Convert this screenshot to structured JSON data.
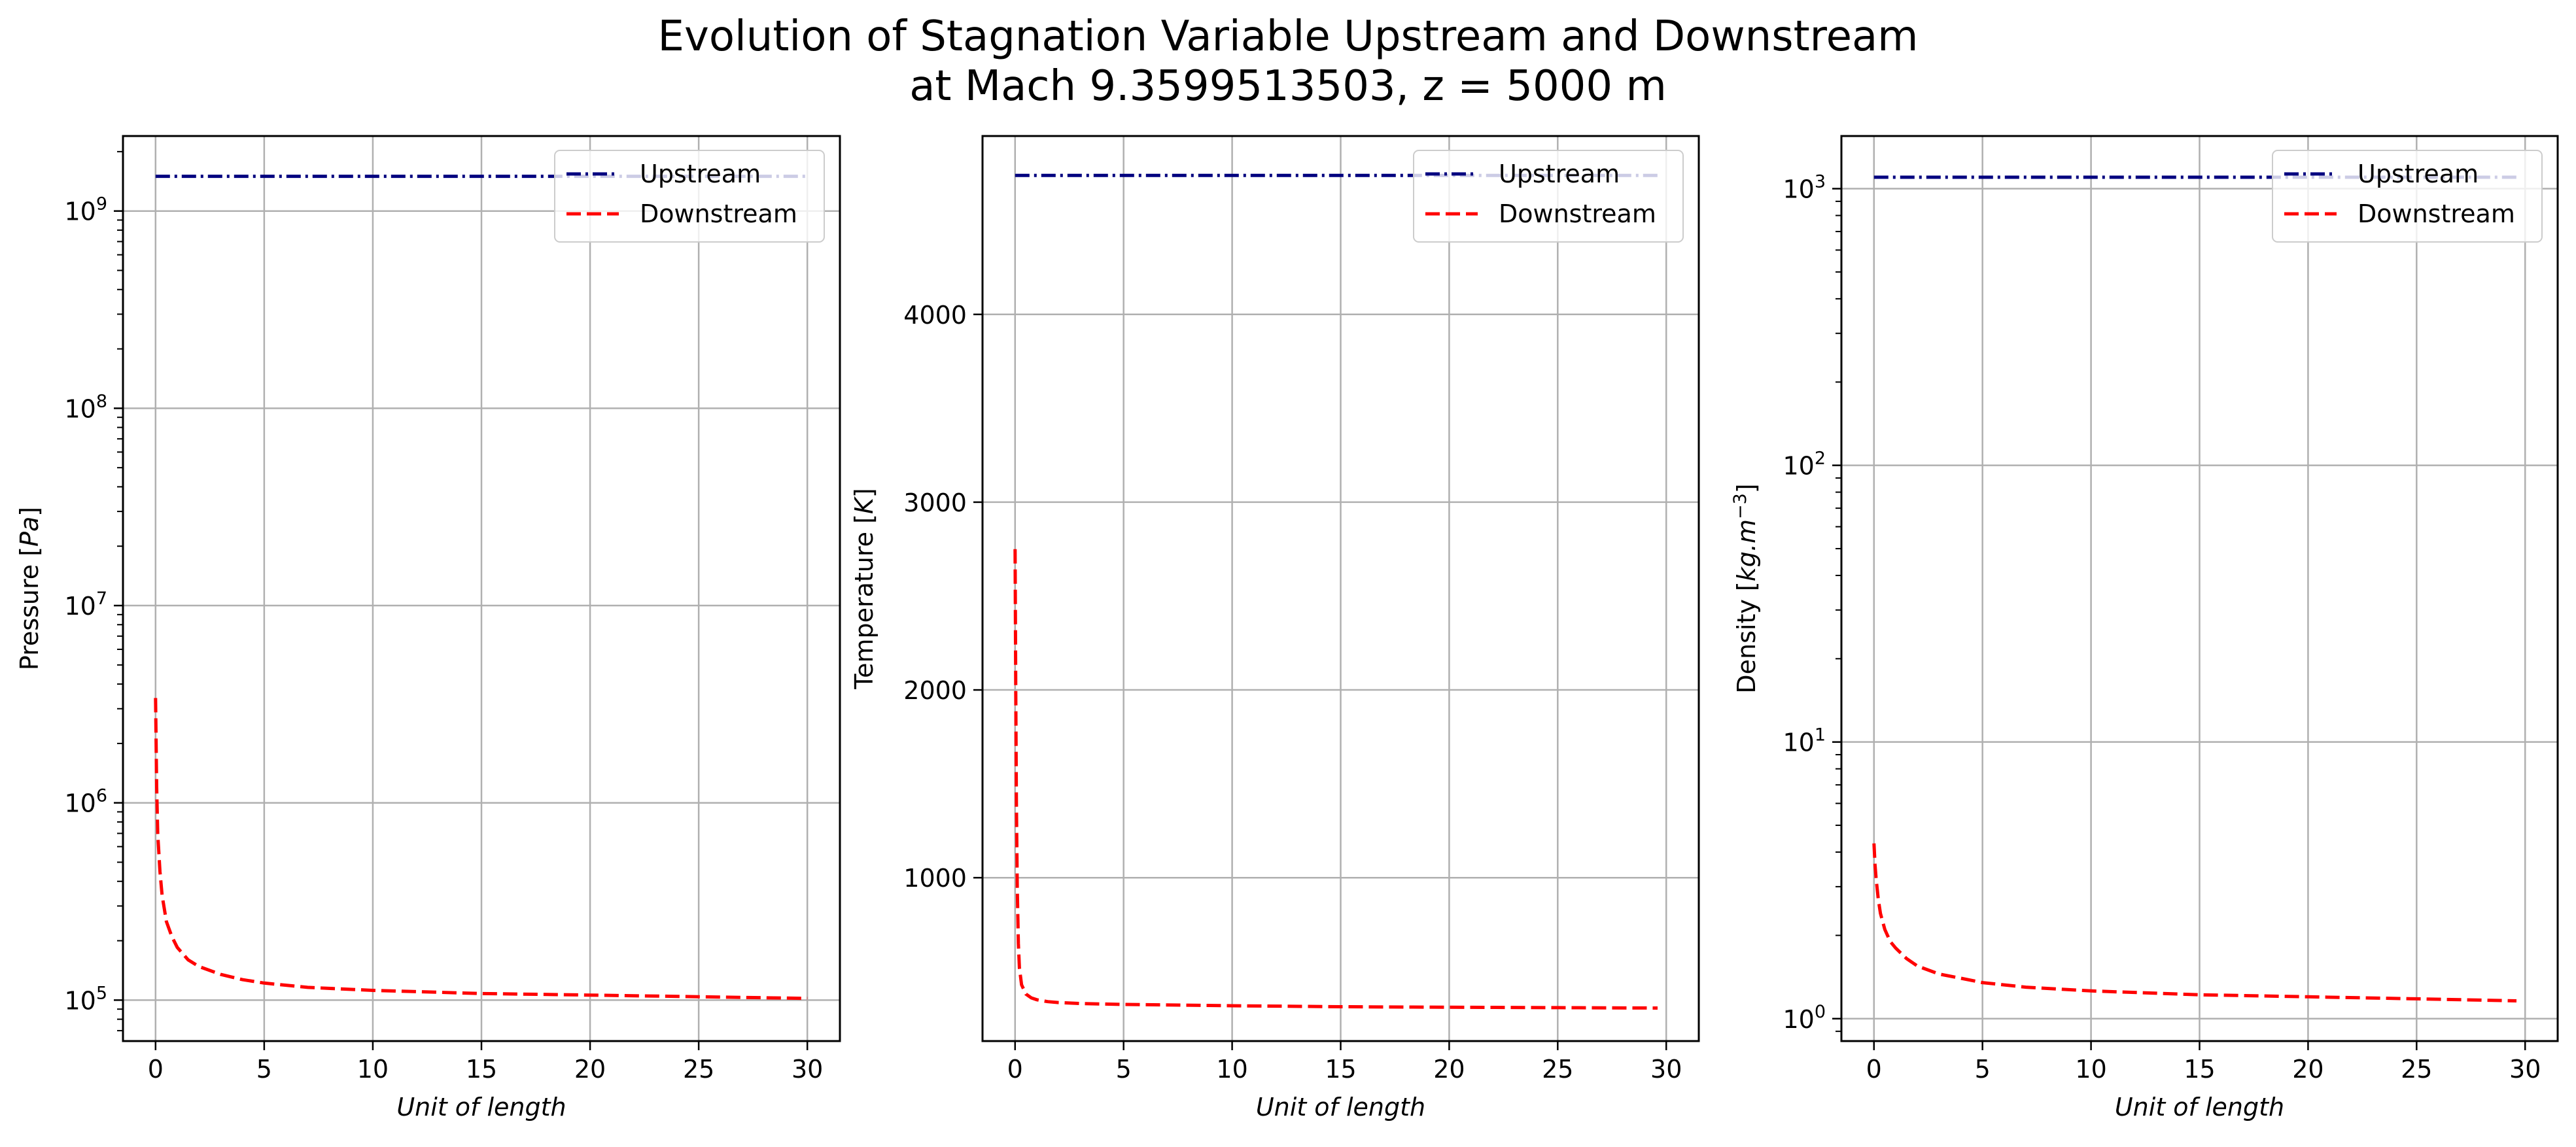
{
  "title_line1": "Evolution of Stagnation Variable Upstream and Downstream",
  "title_line2": "at Mach 9.3599513503, z = 5000 m",
  "colors": {
    "upstream": "#00007f",
    "downstream": "#ff0000",
    "grid": "#b0b0b0"
  },
  "chart_data": [
    {
      "type": "line",
      "xlabel": "Unit of length",
      "ylabel": "Pressure [Pa]",
      "yscale": "log",
      "xlim": [
        -1.5,
        31.5
      ],
      "ylim": [
        62000,
        2400000000
      ],
      "xticks": [
        0,
        5,
        10,
        15,
        20,
        25,
        30
      ],
      "yticks": [
        {
          "v": 100000,
          "base": "10",
          "exp": "5"
        },
        {
          "v": 1000000,
          "base": "10",
          "exp": "6"
        },
        {
          "v": 10000000,
          "base": "10",
          "exp": "7"
        },
        {
          "v": 100000000,
          "base": "10",
          "exp": "8"
        },
        {
          "v": 1000000000,
          "base": "10",
          "exp": "9"
        }
      ],
      "grid": true,
      "legend": "upper right",
      "series": [
        {
          "name": "Upstream",
          "style": "dashdot",
          "x": [
            0,
            30
          ],
          "y": [
            1500000000,
            1500000000
          ]
        },
        {
          "name": "Downstream",
          "style": "dashed",
          "x": [
            0,
            0.05,
            0.1,
            0.2,
            0.3,
            0.5,
            0.75,
            1,
            1.5,
            2,
            3,
            4,
            5,
            7,
            10,
            15,
            20,
            25,
            30
          ],
          "y": [
            3400000,
            1200000,
            700000,
            450000,
            340000,
            250000,
            210000,
            185000,
            160000,
            148000,
            135000,
            127000,
            122000,
            116000,
            112000,
            108000,
            106000,
            104000,
            102000
          ]
        }
      ]
    },
    {
      "type": "line",
      "xlabel": "Unit of length",
      "ylabel": "Temperature [K]",
      "yscale": "linear",
      "xlim": [
        -1.5,
        31.5
      ],
      "ylim": [
        130,
        4950
      ],
      "xticks": [
        0,
        5,
        10,
        15,
        20,
        25,
        30
      ],
      "yticks": [
        1000,
        2000,
        3000,
        4000
      ],
      "grid": true,
      "legend": "upper right",
      "series": [
        {
          "name": "Upstream",
          "style": "dashdot",
          "x": [
            0,
            29.6
          ],
          "y": [
            4740,
            4740
          ]
        },
        {
          "name": "Downstream",
          "style": "dashed",
          "x": [
            0,
            0.03,
            0.06,
            0.1,
            0.15,
            0.2,
            0.3,
            0.5,
            0.75,
            1,
            1.5,
            2,
            3,
            5,
            10,
            15,
            20,
            25,
            29.6
          ],
          "y": [
            2750,
            2000,
            1400,
            950,
            650,
            520,
            430,
            380,
            360,
            350,
            340,
            335,
            330,
            325,
            318,
            313,
            310,
            308,
            306
          ]
        }
      ]
    },
    {
      "type": "line",
      "xlabel": "Unit of length",
      "ylabel": "Density [kg.m^-3]",
      "yscale": "log",
      "xlim": [
        -1.5,
        31.5
      ],
      "ylim": [
        0.83,
        1550
      ],
      "xticks": [
        0,
        5,
        10,
        15,
        20,
        25,
        30
      ],
      "yticks": [
        {
          "v": 1,
          "base": "10",
          "exp": "0"
        },
        {
          "v": 10,
          "base": "10",
          "exp": "1"
        },
        {
          "v": 100,
          "base": "10",
          "exp": "2"
        },
        {
          "v": 1000,
          "base": "10",
          "exp": "3"
        }
      ],
      "grid": true,
      "legend": "upper right",
      "series": [
        {
          "name": "Upstream",
          "style": "dashdot",
          "x": [
            0,
            29.6
          ],
          "y": [
            1100,
            1100
          ]
        },
        {
          "name": "Downstream",
          "style": "dashed",
          "x": [
            0,
            0.05,
            0.1,
            0.2,
            0.3,
            0.5,
            0.75,
            1,
            1.5,
            2,
            3,
            4,
            5,
            7,
            10,
            15,
            20,
            25,
            29.6
          ],
          "y": [
            4.3,
            3.6,
            3.2,
            2.7,
            2.4,
            2.1,
            1.9,
            1.8,
            1.65,
            1.55,
            1.45,
            1.4,
            1.35,
            1.3,
            1.26,
            1.22,
            1.2,
            1.18,
            1.16
          ]
        }
      ]
    }
  ]
}
